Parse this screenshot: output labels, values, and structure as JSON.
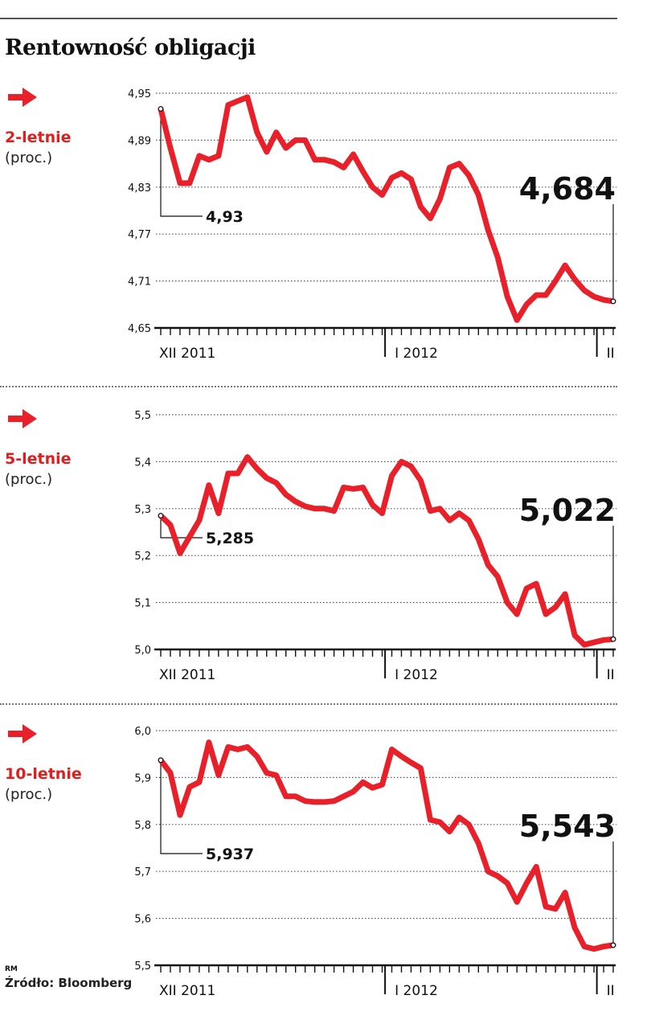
{
  "title": "Rentowność obligacji",
  "source": "Źródło: Bloomberg",
  "author": "RM",
  "colors": {
    "line": "#e8202a",
    "label": "#e01e1e",
    "text": "#111111"
  },
  "chart_data": [
    {
      "type": "line",
      "name": "2-letnie",
      "unit": "(proc.)",
      "ylim": [
        4.65,
        4.95
      ],
      "yticks": [
        "4,95",
        "4,89",
        "4,83",
        "4,77",
        "4,71",
        "4,65"
      ],
      "month_labels": [
        "XII 2011",
        "I 2012",
        "II"
      ],
      "start_label": "4,93",
      "end_label": "4,684",
      "values": [
        4.93,
        4.88,
        4.835,
        4.835,
        4.87,
        4.865,
        4.87,
        4.935,
        4.94,
        4.945,
        4.9,
        4.875,
        4.9,
        4.88,
        4.89,
        4.89,
        4.865,
        4.865,
        4.862,
        4.855,
        4.872,
        4.85,
        4.83,
        4.82,
        4.842,
        4.848,
        4.84,
        4.805,
        4.79,
        4.815,
        4.855,
        4.86,
        4.845,
        4.82,
        4.775,
        4.74,
        4.69,
        4.66,
        4.68,
        4.692,
        4.692,
        4.71,
        4.73,
        4.712,
        4.698,
        4.69,
        4.686,
        4.684
      ]
    },
    {
      "type": "line",
      "name": "5-letnie",
      "unit": "(proc.)",
      "ylim": [
        5.0,
        5.5
      ],
      "yticks": [
        "5,5",
        "5,4",
        "5,3",
        "5,2",
        "5,1",
        "5,0"
      ],
      "month_labels": [
        "XII 2011",
        "I 2012",
        "II"
      ],
      "start_label": "5,285",
      "end_label": "5,022",
      "values": [
        5.285,
        5.265,
        5.205,
        5.24,
        5.275,
        5.35,
        5.29,
        5.375,
        5.375,
        5.41,
        5.385,
        5.365,
        5.355,
        5.33,
        5.315,
        5.305,
        5.3,
        5.3,
        5.295,
        5.345,
        5.342,
        5.345,
        5.308,
        5.29,
        5.37,
        5.4,
        5.39,
        5.36,
        5.295,
        5.3,
        5.275,
        5.29,
        5.275,
        5.235,
        5.18,
        5.155,
        5.1,
        5.075,
        5.13,
        5.14,
        5.075,
        5.09,
        5.118,
        5.03,
        5.01,
        5.015,
        5.02,
        5.022
      ]
    },
    {
      "type": "line",
      "name": "10-letnie",
      "unit": "(proc.)",
      "ylim": [
        5.5,
        6.0
      ],
      "yticks": [
        "6,0",
        "5,9",
        "5,8",
        "5,7",
        "5,6",
        "5,5"
      ],
      "month_labels": [
        "XII 2011",
        "I 2012",
        "II"
      ],
      "start_label": "5,937",
      "end_label": "5,543",
      "values": [
        5.937,
        5.91,
        5.82,
        5.88,
        5.89,
        5.975,
        5.905,
        5.965,
        5.96,
        5.965,
        5.945,
        5.91,
        5.905,
        5.86,
        5.86,
        5.85,
        5.848,
        5.848,
        5.85,
        5.86,
        5.87,
        5.89,
        5.878,
        5.885,
        5.96,
        5.945,
        5.932,
        5.92,
        5.81,
        5.805,
        5.785,
        5.815,
        5.8,
        5.76,
        5.7,
        5.69,
        5.675,
        5.635,
        5.675,
        5.71,
        5.625,
        5.62,
        5.655,
        5.58,
        5.54,
        5.535,
        5.54,
        5.543
      ]
    }
  ]
}
